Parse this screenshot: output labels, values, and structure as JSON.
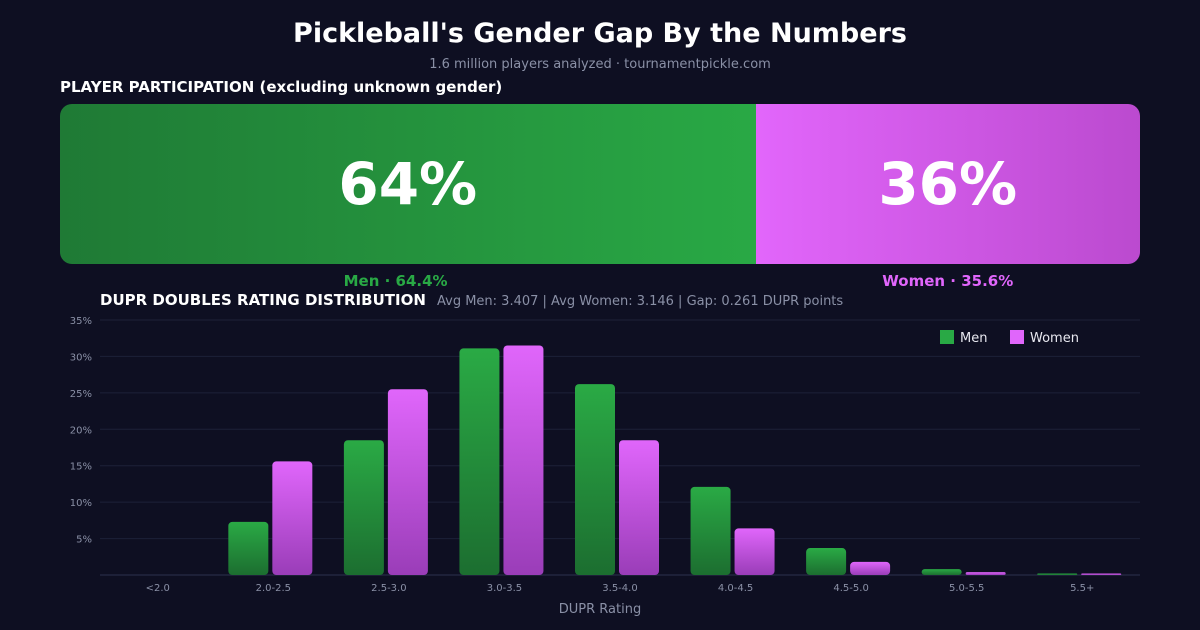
{
  "title": "Pickleball's Gender Gap By the Numbers",
  "subtitle": "1.6 million players analyzed · tournamentpickle.com",
  "participation": {
    "heading": "PLAYER PARTICIPATION (excluding unknown gender)",
    "men_pct": 64.4,
    "women_pct": 35.6,
    "men_big": "64%",
    "women_big": "36%",
    "men_label": "Men · 64.4%",
    "women_label": "Women · 35.6%"
  },
  "colors": {
    "men": "#29a945",
    "women": "#e066fb",
    "background": "#0e0f22"
  },
  "chart_data": {
    "type": "bar",
    "title": "DUPR DOUBLES RATING DISTRIBUTION",
    "annotation": "Avg Men: 3.407  |  Avg Women: 3.146  |  Gap: 0.261 DUPR points",
    "xlabel": "DUPR Rating",
    "ylabel": "",
    "ylim": [
      0,
      35
    ],
    "yticks": [
      "5%",
      "10%",
      "15%",
      "20%",
      "25%",
      "30%",
      "35%"
    ],
    "categories": [
      "<2.0",
      "2.0-2.5",
      "2.5-3.0",
      "3.0-3.5",
      "3.5-4.0",
      "4.0-4.5",
      "4.5-5.0",
      "5.0-5.5",
      "5.5+"
    ],
    "series": [
      {
        "name": "Men",
        "values": [
          0,
          7.3,
          18.5,
          31.1,
          26.2,
          12.1,
          3.7,
          0.8,
          0.15
        ]
      },
      {
        "name": "Women",
        "values": [
          0,
          15.6,
          25.5,
          31.5,
          18.5,
          6.4,
          1.8,
          0.4,
          0.1
        ]
      }
    ],
    "grid": true,
    "legend": "top-right"
  }
}
